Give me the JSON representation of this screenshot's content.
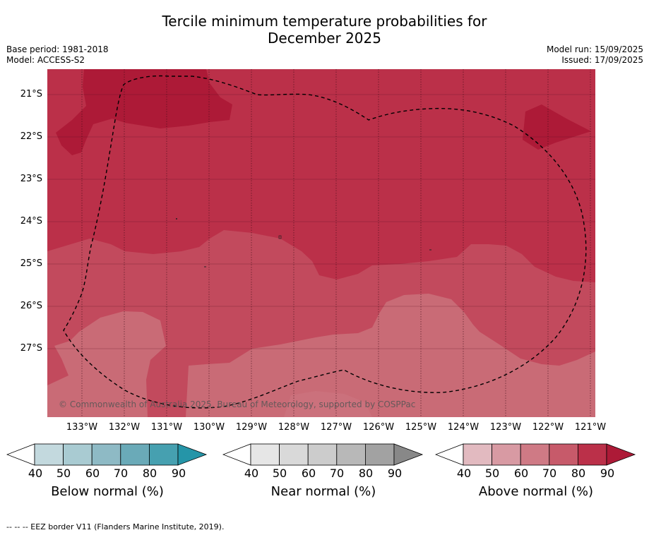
{
  "title_line1": "Tercile minimum temperature probabilities for",
  "title_line2": "December 2025",
  "base_period": "Base period: 1981-2018",
  "model": "Model: ACCESS-S2",
  "model_run": "Model run: 15/09/2025",
  "issued": "Issued: 17/09/2025",
  "lat_labels": [
    "21°S",
    "22°S",
    "23°S",
    "24°S",
    "25°S",
    "26°S",
    "27°S"
  ],
  "lon_labels": [
    "133°W",
    "132°W",
    "131°W",
    "130°W",
    "129°W",
    "128°W",
    "127°W",
    "126°W",
    "125°W",
    "124°W",
    "123°W",
    "122°W",
    "121°W"
  ],
  "copyright": "© Commonwealth of Australia 2025, Bureau of Meteorology, supported by COSPPac",
  "colorbars": [
    {
      "title": "Below normal (%)",
      "ticks": [
        "40",
        "50",
        "60",
        "70",
        "80",
        "90"
      ],
      "colors": [
        "#ffffff",
        "#c3d9de",
        "#a9cbd2",
        "#8ebac5",
        "#6aaab8",
        "#46a0b0",
        "#2595a8"
      ]
    },
    {
      "title": "Near normal (%)",
      "ticks": [
        "40",
        "50",
        "60",
        "70",
        "80",
        "90"
      ],
      "colors": [
        "#ffffff",
        "#e6e6e6",
        "#d9d9d9",
        "#cccccc",
        "#b8b8b8",
        "#a2a2a2",
        "#888888"
      ]
    },
    {
      "title": "Above normal (%)",
      "ticks": [
        "40",
        "50",
        "60",
        "70",
        "80",
        "90"
      ],
      "colors": [
        "#ffffff",
        "#e2bac0",
        "#d89aa3",
        "#cf7a85",
        "#c75a6a",
        "#bb3049",
        "#ad1a37"
      ]
    }
  ],
  "map_colors": {
    "above_80_90": "#bb3049",
    "above_90": "#ad1a37",
    "above_70_80": "#c24a5d",
    "above_60_70": "#c96b76"
  },
  "footer": "--  --  -- EEZ border V11 (Flanders Marine Institute, 2019)."
}
